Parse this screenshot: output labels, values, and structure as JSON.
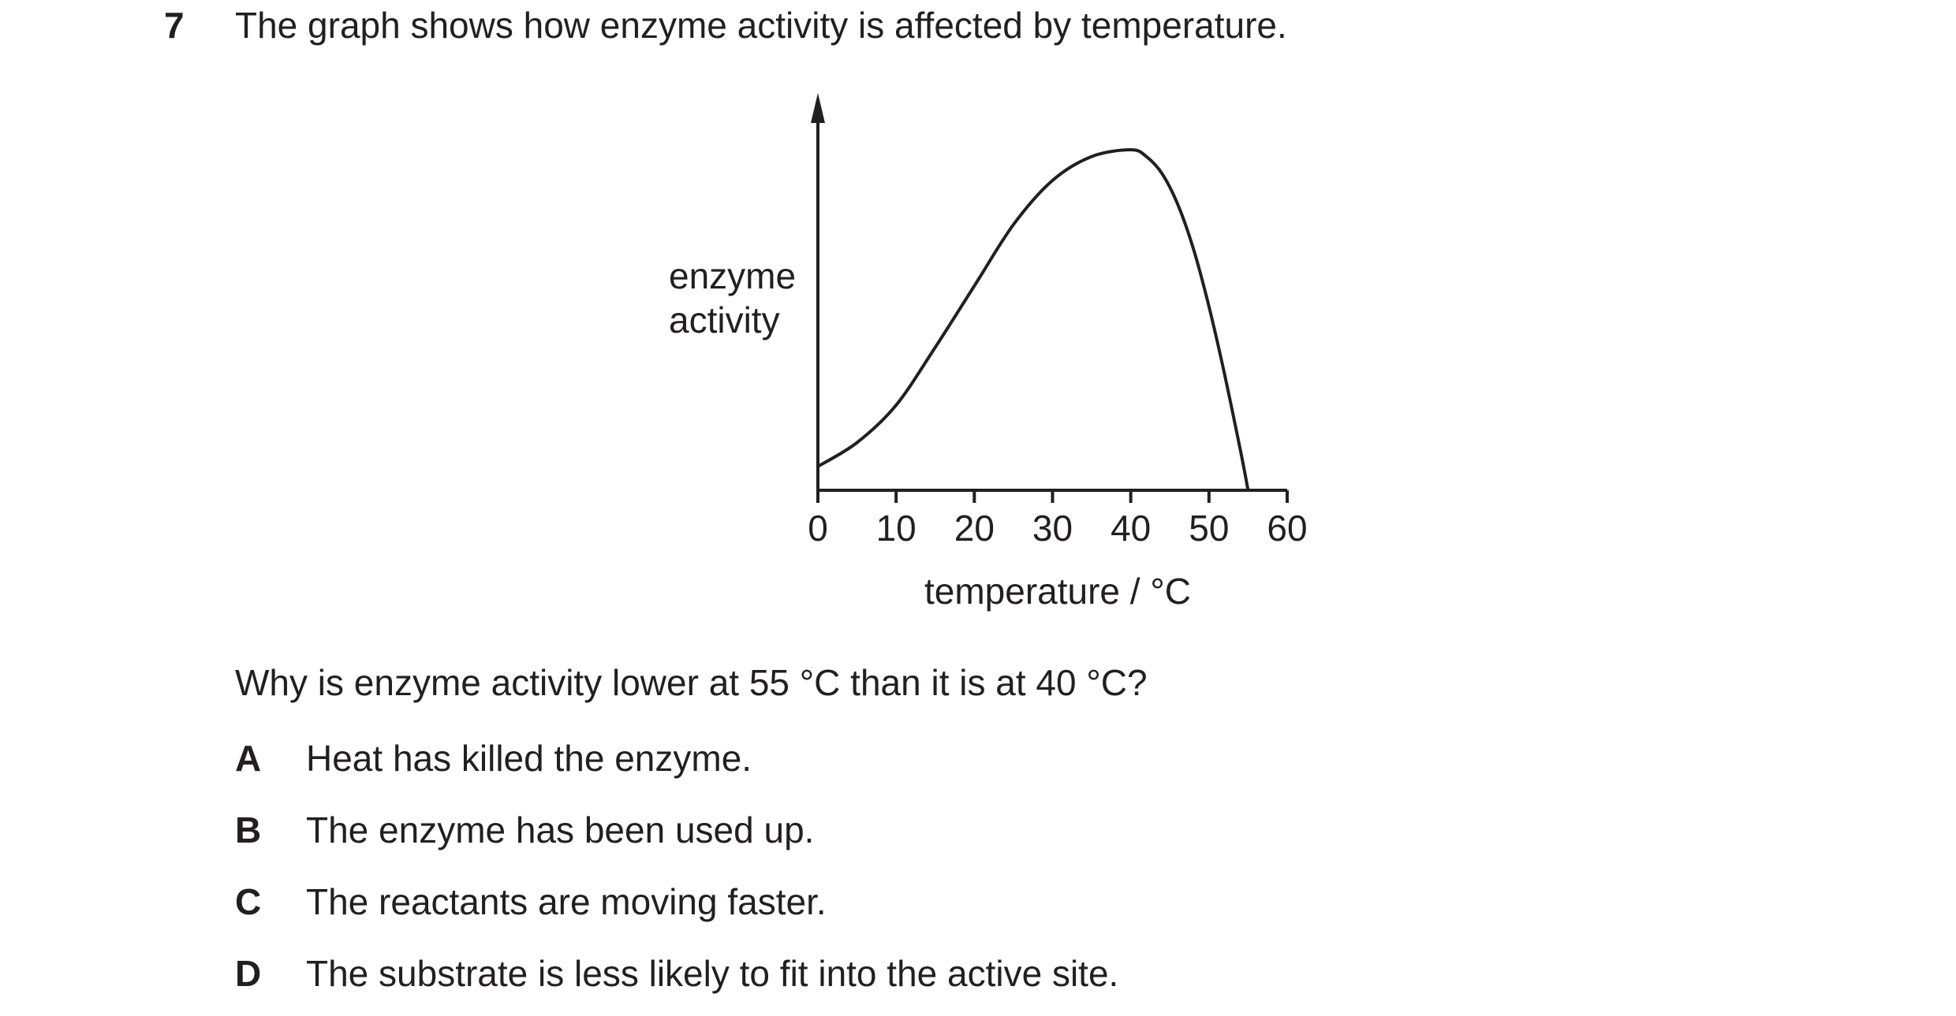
{
  "question": {
    "number": "7",
    "stem": "The graph shows how enzyme activity is affected by temperature.",
    "prompt": "Why is enzyme activity lower at 55 °C than it is at 40 °C?",
    "options": [
      {
        "key": "A",
        "text": "Heat has killed the enzyme."
      },
      {
        "key": "B",
        "text": "The enzyme has been used up."
      },
      {
        "key": "C",
        "text": "The reactants are moving faster."
      },
      {
        "key": "D",
        "text": "The substrate is less likely to fit into the active site."
      }
    ]
  },
  "chart_data": {
    "type": "line",
    "title": "",
    "xlabel": "temperature / °C",
    "ylabel": [
      "enzyme",
      "activity"
    ],
    "xlim": [
      0,
      60
    ],
    "ylim": [
      0,
      1
    ],
    "xticks": [
      "0",
      "10",
      "20",
      "30",
      "40",
      "50",
      "60"
    ],
    "yticks": [],
    "grid": false,
    "series": [
      {
        "x": [
          0,
          5,
          10,
          15,
          20,
          25,
          30,
          35,
          40,
          42,
          44,
          46,
          48,
          50,
          52,
          54,
          55
        ],
        "y": [
          0.07,
          0.14,
          0.25,
          0.42,
          0.6,
          0.78,
          0.91,
          0.98,
          1.0,
          0.98,
          0.93,
          0.84,
          0.71,
          0.54,
          0.34,
          0.12,
          0.0
        ]
      }
    ]
  }
}
